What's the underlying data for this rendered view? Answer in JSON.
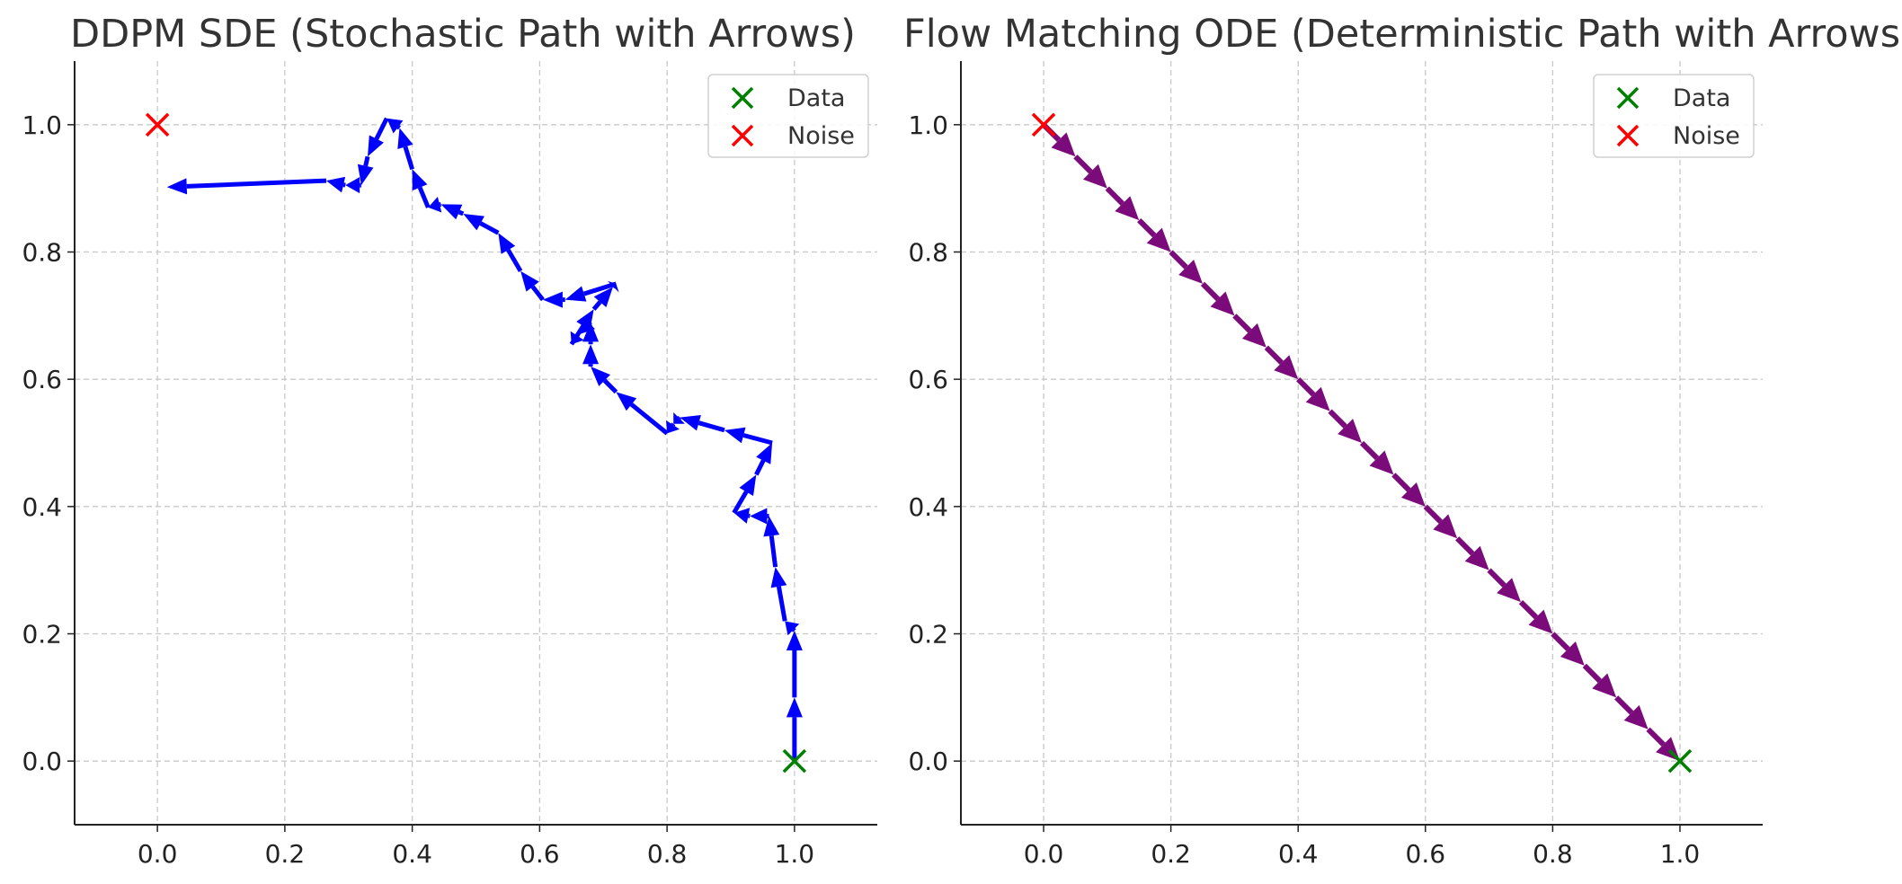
{
  "chart_data": [
    {
      "type": "line",
      "title": "DDPM SDE (Stochastic Path with Arrows)",
      "xlabel": "",
      "ylabel": "",
      "xlim": [
        -0.13,
        1.13
      ],
      "ylim": [
        -0.1,
        1.1
      ],
      "xticks": [
        "0.0",
        "0.2",
        "0.4",
        "0.6",
        "0.8",
        "1.0"
      ],
      "yticks": [
        "0.0",
        "0.2",
        "0.4",
        "0.6",
        "0.8",
        "1.0"
      ],
      "grid": true,
      "legend": {
        "position": "top-right",
        "entries": [
          "Data",
          "Noise"
        ]
      },
      "series": [
        {
          "color": "#0000ff",
          "style": "arrows",
          "x": [
            1.0,
            1.0,
            1.0,
            0.985,
            0.97,
            0.96,
            0.93,
            0.905,
            0.94,
            0.965,
            0.89,
            0.82,
            0.81,
            0.8,
            0.72,
            0.68,
            0.68,
            0.68,
            0.66,
            0.65,
            0.685,
            0.715,
            0.72,
            0.64,
            0.605,
            0.57,
            0.535,
            0.48,
            0.445,
            0.425,
            0.4,
            0.38,
            0.36,
            0.33,
            0.32,
            0.295,
            0.265,
            0.015
          ],
          "y": [
            0.0,
            0.1,
            0.205,
            0.22,
            0.305,
            0.385,
            0.385,
            0.39,
            0.45,
            0.5,
            0.52,
            0.54,
            0.53,
            0.515,
            0.58,
            0.62,
            0.655,
            0.69,
            0.67,
            0.655,
            0.71,
            0.745,
            0.75,
            0.725,
            0.725,
            0.77,
            0.83,
            0.86,
            0.875,
            0.87,
            0.93,
            0.995,
            1.01,
            0.95,
            0.905,
            0.905,
            0.912,
            0.902
          ]
        }
      ],
      "markers": [
        {
          "label": "Data",
          "x": 1.0,
          "y": 0.0,
          "color": "#008000"
        },
        {
          "label": "Noise",
          "x": 0.0,
          "y": 1.0,
          "color": "#ff0000"
        }
      ]
    },
    {
      "type": "line",
      "title": "Flow Matching ODE (Deterministic Path with Arrows)",
      "xlabel": "",
      "ylabel": "",
      "xlim": [
        -0.13,
        1.13
      ],
      "ylim": [
        -0.1,
        1.1
      ],
      "xticks": [
        "0.0",
        "0.2",
        "0.4",
        "0.6",
        "0.8",
        "1.0"
      ],
      "yticks": [
        "0.0",
        "0.2",
        "0.4",
        "0.6",
        "0.8",
        "1.0"
      ],
      "grid": true,
      "legend": {
        "position": "top-right",
        "entries": [
          "Data",
          "Noise"
        ]
      },
      "series": [
        {
          "color": "#7b0a7b",
          "style": "arrows",
          "x": [
            0.0,
            0.05,
            0.1,
            0.15,
            0.2,
            0.25,
            0.3,
            0.35,
            0.4,
            0.45,
            0.5,
            0.55,
            0.6,
            0.65,
            0.7,
            0.75,
            0.8,
            0.85,
            0.9,
            0.95,
            1.0
          ],
          "y": [
            1.0,
            0.95,
            0.9,
            0.85,
            0.8,
            0.75,
            0.7,
            0.65,
            0.6,
            0.55,
            0.5,
            0.45,
            0.4,
            0.35,
            0.3,
            0.25,
            0.2,
            0.15,
            0.1,
            0.05,
            0.0
          ]
        }
      ],
      "markers": [
        {
          "label": "Data",
          "x": 1.0,
          "y": 0.0,
          "color": "#008000"
        },
        {
          "label": "Noise",
          "x": 0.0,
          "y": 1.0,
          "color": "#ff0000"
        }
      ]
    }
  ]
}
